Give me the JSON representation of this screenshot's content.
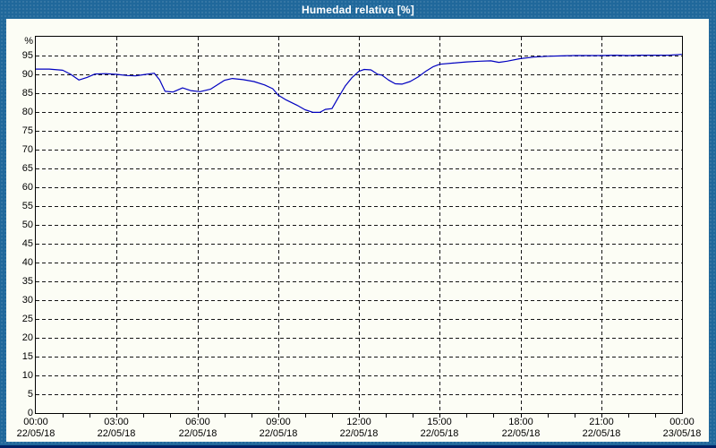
{
  "window": {
    "title": "Humedad relativa [%]"
  },
  "colors": {
    "frame": "#20689b",
    "frame_bottom_line": "#002266",
    "panel_bg": "#fcfdf5",
    "plot_border": "#000000",
    "grid": "#141414",
    "series_line": "#0000c0",
    "title_text": "#ffffff",
    "axis_text": "#000000"
  },
  "chart_data": {
    "type": "line",
    "title": "Humedad relativa [%]",
    "ylabel": "%",
    "ylim": [
      0,
      100
    ],
    "y_tick_step": 5,
    "y_ticks": [
      0,
      5,
      10,
      15,
      20,
      25,
      30,
      35,
      40,
      45,
      50,
      55,
      60,
      65,
      70,
      75,
      80,
      85,
      90,
      95
    ],
    "xlim_hours": [
      0,
      24
    ],
    "x_minor_tick_hours": 1,
    "grid": "dashed",
    "x_major_ticks": [
      {
        "hours": 0,
        "time": "00:00",
        "date": "22/05/18"
      },
      {
        "hours": 3,
        "time": "03:00",
        "date": "22/05/18"
      },
      {
        "hours": 6,
        "time": "06:00",
        "date": "22/05/18"
      },
      {
        "hours": 9,
        "time": "09:00",
        "date": "22/05/18"
      },
      {
        "hours": 12,
        "time": "12:00",
        "date": "22/05/18"
      },
      {
        "hours": 15,
        "time": "15:00",
        "date": "22/05/18"
      },
      {
        "hours": 18,
        "time": "18:00",
        "date": "22/05/18"
      },
      {
        "hours": 21,
        "time": "21:00",
        "date": "22/05/18"
      },
      {
        "hours": 24,
        "time": "00:00",
        "date": "23/05/18"
      }
    ],
    "series": [
      {
        "name": "Humedad relativa",
        "points": [
          [
            0,
            91.4
          ],
          [
            0.5,
            91.4
          ],
          [
            1,
            91.1
          ],
          [
            1.3,
            90.0
          ],
          [
            1.6,
            88.5
          ],
          [
            1.9,
            89.2
          ],
          [
            2.2,
            90.1
          ],
          [
            2.6,
            90.2
          ],
          [
            3,
            90.0
          ],
          [
            3.4,
            89.7
          ],
          [
            3.7,
            89.6
          ],
          [
            4,
            89.9
          ],
          [
            4.4,
            90.3
          ],
          [
            4.6,
            88.5
          ],
          [
            4.8,
            85.5
          ],
          [
            5.1,
            85.3
          ],
          [
            5.45,
            86.4
          ],
          [
            5.75,
            85.7
          ],
          [
            6.1,
            85.4
          ],
          [
            6.5,
            86.1
          ],
          [
            7,
            88.4
          ],
          [
            7.3,
            88.9
          ],
          [
            7.7,
            88.6
          ],
          [
            8.1,
            88.1
          ],
          [
            8.5,
            87.2
          ],
          [
            8.8,
            86.2
          ],
          [
            9,
            84.5
          ],
          [
            9.3,
            83.2
          ],
          [
            9.7,
            81.8
          ],
          [
            10,
            80.6
          ],
          [
            10.3,
            79.9
          ],
          [
            10.55,
            79.9
          ],
          [
            10.75,
            80.7
          ],
          [
            11,
            80.9
          ],
          [
            11.25,
            84.0
          ],
          [
            11.5,
            87.0
          ],
          [
            11.75,
            89.2
          ],
          [
            12,
            90.8
          ],
          [
            12.2,
            91.3
          ],
          [
            12.45,
            91.2
          ],
          [
            12.7,
            90.0
          ],
          [
            12.85,
            89.8
          ],
          [
            13.1,
            88.5
          ],
          [
            13.35,
            87.5
          ],
          [
            13.6,
            87.4
          ],
          [
            13.9,
            88.1
          ],
          [
            14.2,
            89.3
          ],
          [
            14.5,
            90.9
          ],
          [
            14.75,
            92.0
          ],
          [
            15,
            92.7
          ],
          [
            15.5,
            93.0
          ],
          [
            16,
            93.3
          ],
          [
            16.5,
            93.5
          ],
          [
            16.9,
            93.6
          ],
          [
            17.2,
            93.2
          ],
          [
            17.5,
            93.5
          ],
          [
            18,
            94.2
          ],
          [
            18.5,
            94.6
          ],
          [
            19,
            94.8
          ],
          [
            19.5,
            94.9
          ],
          [
            20,
            95.0
          ],
          [
            21,
            95.0
          ],
          [
            21.5,
            95.1
          ],
          [
            22,
            95.0
          ],
          [
            22.5,
            95.1
          ],
          [
            23,
            95.1
          ],
          [
            23.5,
            95.1
          ],
          [
            24,
            95.3
          ]
        ]
      }
    ]
  }
}
